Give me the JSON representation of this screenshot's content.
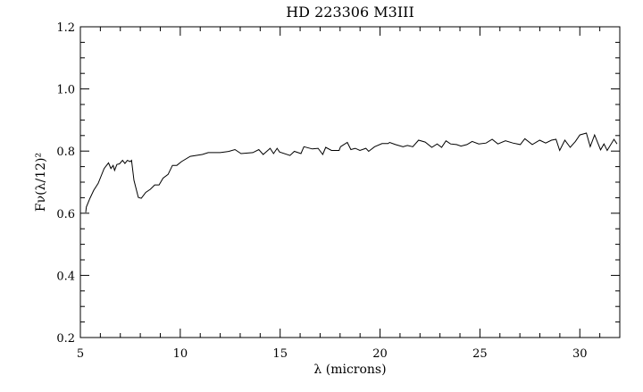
{
  "chart_data": {
    "type": "line",
    "title": "HD 223306 M3III",
    "xlabel": "λ (microns)",
    "ylabel": "Fν(λ/12)²",
    "xlim": [
      5,
      32
    ],
    "ylim": [
      0.2,
      1.2
    ],
    "x_major_ticks": [
      5,
      10,
      15,
      20,
      25,
      30
    ],
    "x_tick_labels": [
      "5",
      "10",
      "15",
      "20",
      "25",
      "30"
    ],
    "y_major_ticks": [
      0.2,
      0.4,
      0.6,
      0.8,
      1.0,
      1.2
    ],
    "y_tick_labels": [
      "0.2",
      "0.4",
      "0.6",
      "0.8",
      "1.0",
      "1.2"
    ],
    "x_minor_step": 1,
    "y_minor_step": 0.05,
    "grid": false,
    "line_color": "#000000",
    "series": [
      {
        "x": [
          5.27,
          5.3,
          5.48,
          5.67,
          5.89,
          6.19,
          6.41,
          6.53,
          6.64,
          6.71,
          6.83,
          6.96,
          7.11,
          7.23,
          7.35,
          7.5,
          7.56,
          7.68,
          7.9,
          8.05,
          8.27,
          8.5,
          8.72,
          8.94,
          9.14,
          9.39,
          9.61,
          9.83,
          10.06,
          10.5,
          11.1,
          11.4,
          11.7,
          12.0,
          12.44,
          12.74,
          13.04,
          13.63,
          13.93,
          14.15,
          14.5,
          14.67,
          14.85,
          14.97,
          15.49,
          15.71,
          16.04,
          16.19,
          16.61,
          16.9,
          17.13,
          17.28,
          17.57,
          17.95,
          18.02,
          18.36,
          18.54,
          18.76,
          18.99,
          19.29,
          19.43,
          19.73,
          20.1,
          20.4,
          20.48,
          20.77,
          21.15,
          21.37,
          21.64,
          21.93,
          22.26,
          22.59,
          22.86,
          23.08,
          23.3,
          23.53,
          23.83,
          24.05,
          24.35,
          24.61,
          24.94,
          25.31,
          25.61,
          25.9,
          26.28,
          26.65,
          27.02,
          27.25,
          27.62,
          27.99,
          28.29,
          28.58,
          28.81,
          28.99,
          29.25,
          29.52,
          29.78,
          30.0,
          30.33,
          30.52,
          30.74,
          31.04,
          31.21,
          31.37,
          31.71,
          31.86
        ],
        "y": [
          0.603,
          0.62,
          0.648,
          0.674,
          0.696,
          0.744,
          0.762,
          0.744,
          0.754,
          0.738,
          0.757,
          0.759,
          0.77,
          0.76,
          0.77,
          0.766,
          0.77,
          0.706,
          0.651,
          0.648,
          0.667,
          0.677,
          0.691,
          0.691,
          0.713,
          0.725,
          0.754,
          0.754,
          0.766,
          0.783,
          0.789,
          0.795,
          0.795,
          0.795,
          0.799,
          0.805,
          0.792,
          0.795,
          0.805,
          0.789,
          0.809,
          0.792,
          0.809,
          0.797,
          0.786,
          0.799,
          0.792,
          0.814,
          0.807,
          0.809,
          0.789,
          0.812,
          0.802,
          0.802,
          0.814,
          0.828,
          0.805,
          0.809,
          0.802,
          0.809,
          0.799,
          0.814,
          0.824,
          0.824,
          0.828,
          0.821,
          0.814,
          0.818,
          0.814,
          0.835,
          0.829,
          0.812,
          0.823,
          0.812,
          0.833,
          0.823,
          0.821,
          0.816,
          0.821,
          0.831,
          0.823,
          0.826,
          0.838,
          0.823,
          0.833,
          0.826,
          0.821,
          0.84,
          0.821,
          0.835,
          0.826,
          0.835,
          0.838,
          0.802,
          0.835,
          0.812,
          0.831,
          0.852,
          0.858,
          0.814,
          0.852,
          0.804,
          0.823,
          0.802,
          0.838,
          0.823
        ]
      }
    ]
  }
}
